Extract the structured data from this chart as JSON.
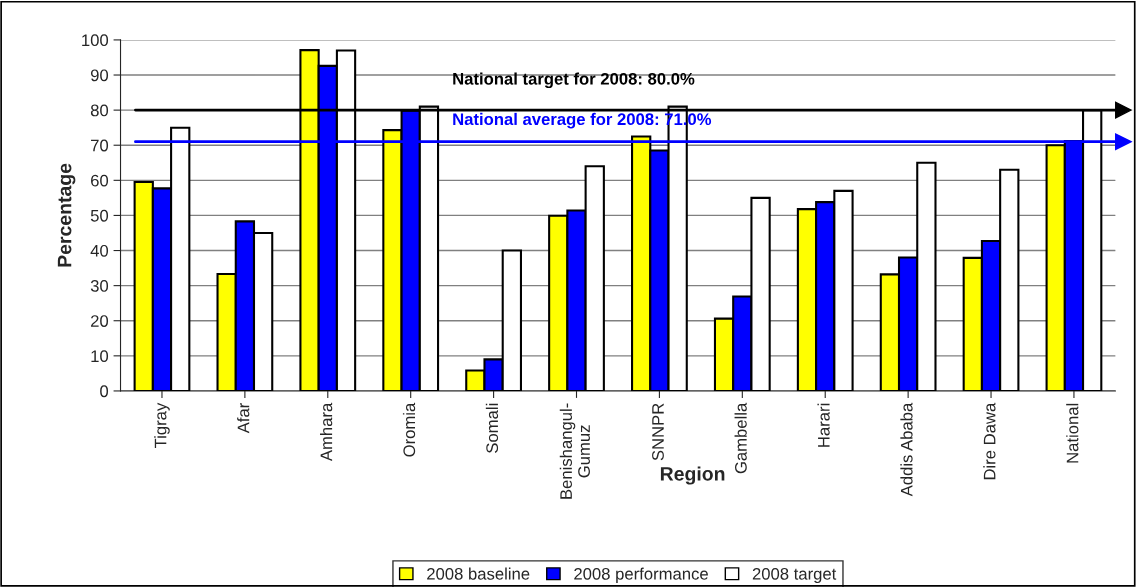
{
  "chart_data": {
    "type": "bar",
    "xlabel": "Region",
    "ylabel": "Percentage",
    "categories": [
      "Tigray",
      "Afar",
      "Amhara",
      "Oromia",
      "Somali",
      "Benishangul-\nGumuz",
      "SNNPR",
      "Gambella",
      "Harari",
      "Addis Ababa",
      "Dire Dawa",
      "National"
    ],
    "series": [
      {
        "name": "2008 baseline",
        "color": "#ffff00",
        "values": [
          59.5,
          33.3,
          97.1,
          74.3,
          5.8,
          49.9,
          72.5,
          20.6,
          51.8,
          33.2,
          37.9,
          70.0
        ]
      },
      {
        "name": "2008 performance",
        "color": "#0000ff",
        "values": [
          57.7,
          48.3,
          92.6,
          79.8,
          9.0,
          51.4,
          68.5,
          26.9,
          53.8,
          38.0,
          42.7,
          71.2
        ]
      },
      {
        "name": "2008 target",
        "color": "#ffffff",
        "values": [
          75,
          45,
          97,
          81,
          40,
          64,
          81,
          55,
          57,
          65,
          63,
          80
        ]
      }
    ],
    "ylim": [
      0,
      100
    ],
    "yticks": [
      0,
      10,
      20,
      30,
      40,
      50,
      60,
      70,
      80,
      90,
      100
    ],
    "grid": "y",
    "legend": "bottom",
    "ref_lines": [
      {
        "axis": "y",
        "value": 80.0,
        "label": "National target for 2008: 80.0%",
        "color": "#000000"
      },
      {
        "axis": "y",
        "value": 71.0,
        "label": "National average for 2008: 71.0%",
        "color": "#0000ff"
      }
    ]
  }
}
